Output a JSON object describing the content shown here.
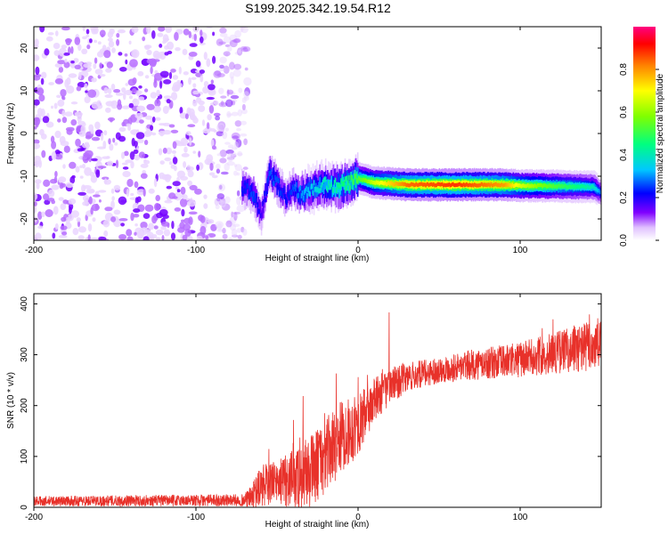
{
  "title": "S199.2025.342.19.54.R12",
  "chart_data": [
    {
      "type": "heatmap",
      "name": "spectrogram",
      "xlabel": "Height of straight line (km)",
      "ylabel": "Frequency (Hz)",
      "xlim": [
        -200,
        150
      ],
      "ylim": [
        -25,
        25
      ],
      "xticks": [
        "-200",
        "-100",
        "0",
        "100"
      ],
      "xtick_values": [
        -200,
        -100,
        0,
        100
      ],
      "yticks": [
        "-20",
        "-10",
        "0",
        "10",
        "20"
      ],
      "ytick_values": [
        -20,
        -10,
        0,
        10,
        20
      ],
      "colorbar": {
        "label": "Normalized spectral amplitude",
        "range": [
          0,
          1
        ],
        "ticks": [
          "0.0",
          "0.2",
          "0.4",
          "0.6",
          "0.8"
        ],
        "tick_values": [
          0.0,
          0.2,
          0.4,
          0.6,
          0.8
        ],
        "colors": [
          "#ffffff",
          "#e6c8ff",
          "#8000ff",
          "#0000ff",
          "#00c8ff",
          "#00ff80",
          "#80ff00",
          "#ffff00",
          "#ff8000",
          "#ff0000",
          "#ff0080"
        ]
      },
      "noise_region_km": [
        -200,
        -72
      ],
      "signal_track": [
        {
          "x": -72,
          "freq": -12.5,
          "amp": 0.25
        },
        {
          "x": -65,
          "freq": -14,
          "amp": 0.3
        },
        {
          "x": -60,
          "freq": -19,
          "amp": 0.2
        },
        {
          "x": -55,
          "freq": -9,
          "amp": 0.3
        },
        {
          "x": -50,
          "freq": -12,
          "amp": 0.3
        },
        {
          "x": -45,
          "freq": -15,
          "amp": 0.25
        },
        {
          "x": -40,
          "freq": -13,
          "amp": 0.3
        },
        {
          "x": -35,
          "freq": -14,
          "amp": 0.35
        },
        {
          "x": -28,
          "freq": -13,
          "amp": 0.4
        },
        {
          "x": -20,
          "freq": -12,
          "amp": 0.45
        },
        {
          "x": -12,
          "freq": -12.5,
          "amp": 0.5
        },
        {
          "x": -5,
          "freq": -11.5,
          "amp": 0.55
        },
        {
          "x": 0,
          "freq": -10.5,
          "amp": 0.6
        },
        {
          "x": 10,
          "freq": -11.5,
          "amp": 0.75
        },
        {
          "x": 30,
          "freq": -12,
          "amp": 0.95
        },
        {
          "x": 60,
          "freq": -12,
          "amp": 1.0
        },
        {
          "x": 90,
          "freq": -12,
          "amp": 0.9
        },
        {
          "x": 100,
          "freq": -12.2,
          "amp": 0.75
        },
        {
          "x": 120,
          "freq": -12.3,
          "amp": 0.6
        },
        {
          "x": 145,
          "freq": -12.5,
          "amp": 0.45
        },
        {
          "x": 150,
          "freq": -14,
          "amp": 0.3
        }
      ]
    },
    {
      "type": "line",
      "name": "snr",
      "xlabel": "Height of straight line (km)",
      "ylabel": "SNR (10 * v/v)",
      "xlim": [
        -200,
        150
      ],
      "ylim": [
        0,
        420
      ],
      "xticks": [
        "-200",
        "-100",
        "0",
        "100"
      ],
      "xtick_values": [
        -200,
        -100,
        0,
        100
      ],
      "yticks": [
        "0",
        "100",
        "200",
        "300",
        "400"
      ],
      "ytick_values": [
        0,
        100,
        200,
        300,
        400
      ],
      "line_color": "#e8312a",
      "envelope": {
        "x": [
          -200,
          -70,
          -65,
          -60,
          -50,
          -40,
          -30,
          -20,
          -10,
          0,
          10,
          20,
          30,
          50,
          70,
          100,
          130,
          150
        ],
        "mean": [
          12,
          14,
          22,
          40,
          50,
          55,
          70,
          100,
          140,
          160,
          210,
          240,
          255,
          270,
          280,
          290,
          310,
          320
        ],
        "amp": [
          10,
          12,
          25,
          45,
          40,
          60,
          70,
          75,
          70,
          60,
          45,
          35,
          30,
          25,
          30,
          35,
          45,
          55
        ]
      }
    }
  ]
}
